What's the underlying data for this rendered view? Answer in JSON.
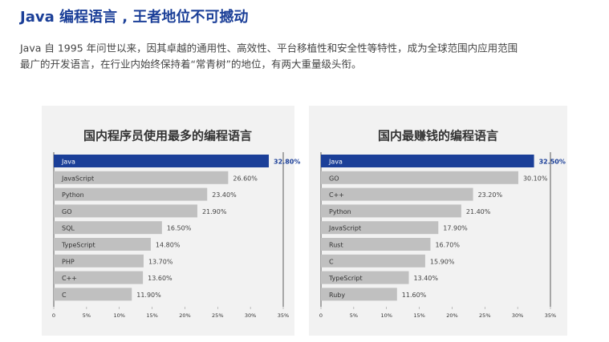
{
  "header": {
    "title": "Java 编程语言 , 王者地位不可撼动",
    "paragraph": [
      "Java 自 1995 年问世以来，因其卓越的通用性、高效性、平台移植性和安全性等特性，成为全球范围内应用范围",
      "最广的开发语言，在行业内始终保持着“常青树”的地位，有两大重量级头衔。"
    ]
  },
  "chart_data": [
    {
      "type": "bar",
      "orientation": "horizontal",
      "title": "国内程序员使用最多的编程语言",
      "categories": [
        "Java",
        "JavaScript",
        "Python",
        "GO",
        "SQL",
        "TypeScript",
        "PHP",
        "C++",
        "C"
      ],
      "values": [
        32.8,
        26.6,
        23.4,
        21.9,
        16.5,
        14.8,
        13.7,
        13.6,
        11.9
      ],
      "value_labels": [
        "32.80%",
        "26.60%",
        "23.40%",
        "21.90%",
        "16.50%",
        "14.80%",
        "13.70%",
        "13.60%",
        "11.90%"
      ],
      "colors": [
        "#1b3f98",
        "#c0c0c0",
        "#c0c0c0",
        "#c0c0c0",
        "#c0c0c0",
        "#c0c0c0",
        "#c0c0c0",
        "#c0c0c0",
        "#c0c0c0"
      ],
      "xlim": [
        0,
        35
      ],
      "xticks": [
        0,
        {
          "value": 5,
          "label": "5%"
        },
        {
          "value": 10,
          "label": "10%"
        },
        {
          "value": 15,
          "label": "15%"
        },
        {
          "value": 20,
          "label": "20%"
        },
        {
          "value": 25,
          "label": "25%"
        },
        {
          "value": 30,
          "label": "30%"
        },
        {
          "value": 35,
          "label": "35%"
        }
      ]
    },
    {
      "type": "bar",
      "orientation": "horizontal",
      "title": "国内最赚钱的编程语言",
      "categories": [
        "Java",
        "GO",
        "C++",
        "Python",
        "JavaScript",
        "Rust",
        "C",
        "TypeScript",
        "Ruby"
      ],
      "values": [
        32.5,
        30.1,
        23.2,
        21.4,
        17.9,
        16.7,
        15.9,
        13.4,
        11.6
      ],
      "value_labels": [
        "32.50%",
        "30.10%",
        "23.20%",
        "21.40%",
        "17.90%",
        "16.70%",
        "15.90%",
        "13.40%",
        "11.60%"
      ],
      "colors": [
        "#1b3f98",
        "#c0c0c0",
        "#c0c0c0",
        "#c0c0c0",
        "#c0c0c0",
        "#c0c0c0",
        "#c0c0c0",
        "#c0c0c0",
        "#c0c0c0"
      ],
      "xlim": [
        0,
        35
      ],
      "xticks": [
        0,
        {
          "value": 5,
          "label": "5%"
        },
        {
          "value": 10,
          "label": "10%"
        },
        {
          "value": 15,
          "label": "15%"
        },
        {
          "value": 20,
          "label": "20%"
        },
        {
          "value": 25,
          "label": "25%"
        },
        {
          "value": 30,
          "label": "30%"
        },
        {
          "value": 35,
          "label": "35%"
        }
      ]
    }
  ]
}
